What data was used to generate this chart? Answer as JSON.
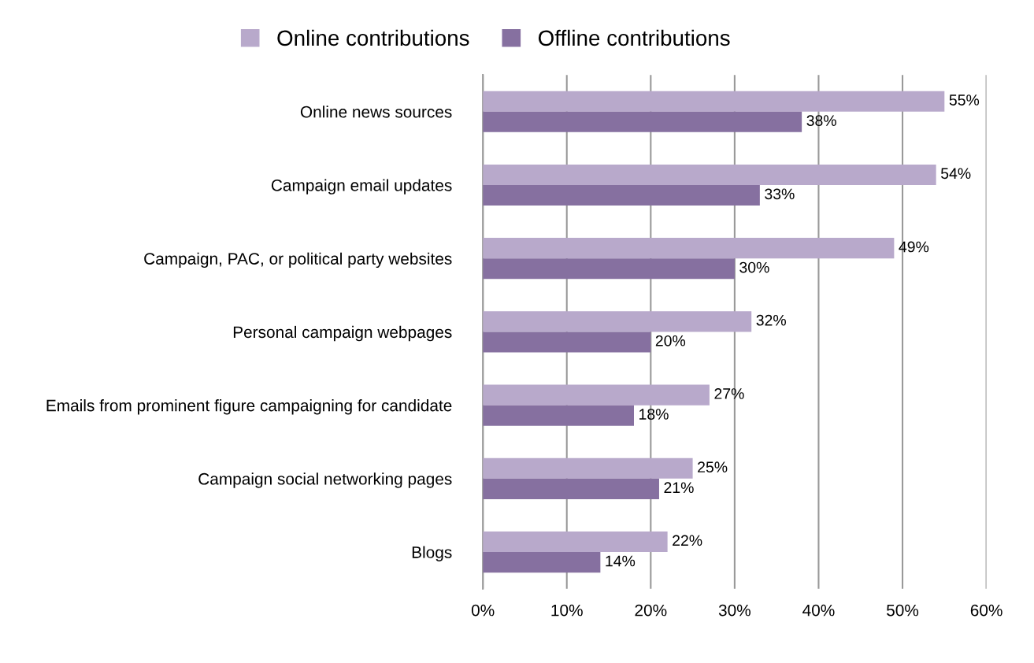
{
  "chart_data": {
    "type": "bar",
    "orientation": "horizontal",
    "categories": [
      "Online news sources",
      "Campaign email updates",
      "Campaign, PAC, or political party websites",
      "Personal campaign webpages",
      "Emails from prominent figure campaigning for candidate",
      "Campaign social networking pages",
      "Blogs"
    ],
    "series": [
      {
        "name": "Online contributions",
        "color": "#b8a9cb",
        "values": [
          55,
          54,
          49,
          32,
          27,
          25,
          22
        ],
        "value_labels": [
          "55%",
          "54%",
          "49%",
          "32%",
          "27%",
          "25%",
          "22%"
        ]
      },
      {
        "name": "Offline contributions",
        "color": "#8670a0",
        "values": [
          38,
          33,
          30,
          20,
          18,
          21,
          14
        ],
        "value_labels": [
          "38%",
          "33%",
          "30%",
          "20%",
          "18%",
          "21%",
          "14%"
        ]
      }
    ],
    "xlim": [
      0,
      60
    ],
    "xticks": [
      {
        "value": 0,
        "label": "0%"
      },
      {
        "value": 10,
        "label": "10%"
      },
      {
        "value": 20,
        "label": "20%"
      },
      {
        "value": 30,
        "label": "30%"
      },
      {
        "value": 40,
        "label": "40%"
      },
      {
        "value": 50,
        "label": "50%"
      },
      {
        "value": 60,
        "label": "60%"
      }
    ],
    "grid": "x",
    "legend": "top"
  }
}
